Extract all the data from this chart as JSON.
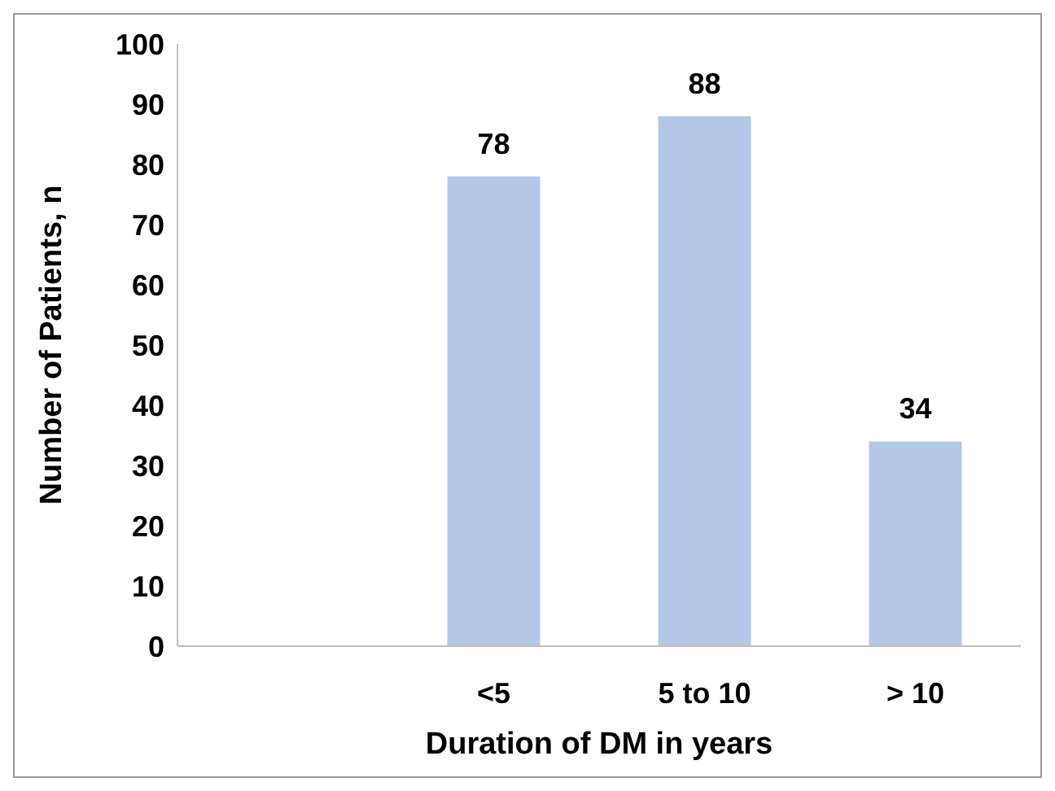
{
  "chart_data": {
    "type": "bar",
    "xlabel": "Duration of DM in years",
    "ylabel": "Number of Patients, n",
    "categories": [
      null,
      "<5",
      "5 to 10",
      "> 10"
    ],
    "values": [
      null,
      78,
      88,
      34
    ],
    "color": "#b4c7e7",
    "ylim": [
      0,
      100
    ],
    "yticks": [
      0,
      10,
      20,
      30,
      40,
      50,
      60,
      70,
      80,
      90,
      100
    ],
    "grid": false,
    "data_labels": true,
    "legend": false
  }
}
